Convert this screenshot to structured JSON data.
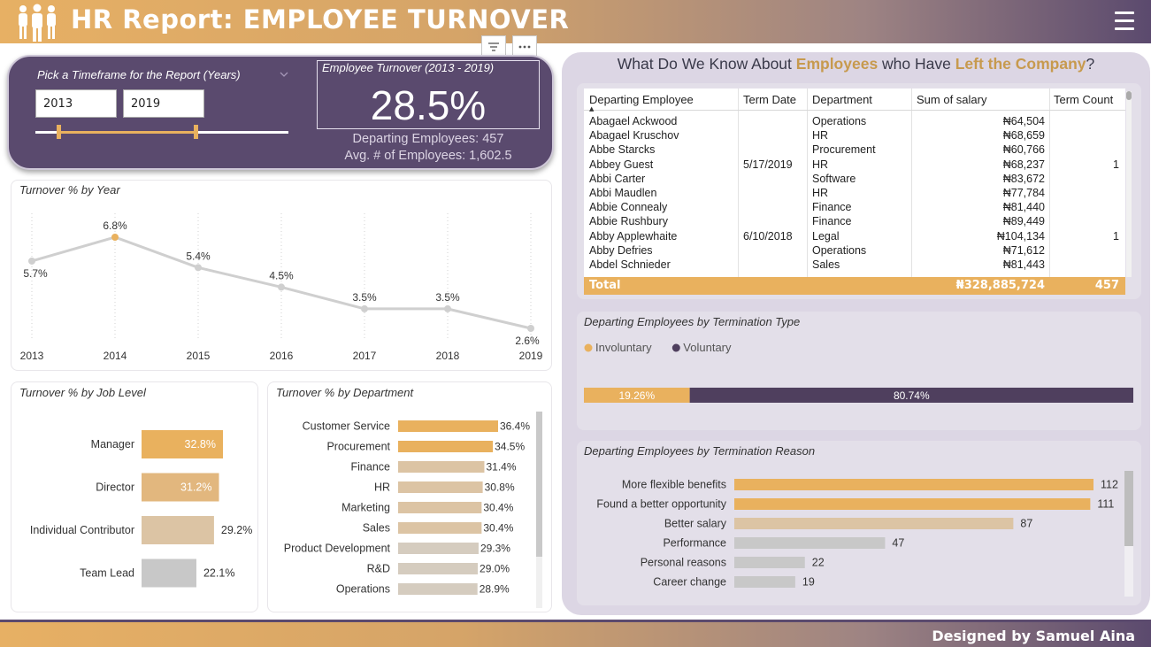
{
  "header": {
    "title": "HR Report: EMPLOYEE TURNOVER",
    "menu_icon": "hamburger-menu-icon",
    "filter_icon": "filter-icon",
    "more_icon": "more-options-icon"
  },
  "timeframe": {
    "label": "Pick a Timeframe for the Report (Years)",
    "start": "2013",
    "end": "2019",
    "range": [
      2013,
      2019
    ]
  },
  "kpi": {
    "title": "Employee Turnover (2013 - 2019)",
    "value": "28.5%",
    "departing": "Departing Employees: 457",
    "average": "Avg. # of Employees: 1,602.5"
  },
  "right": {
    "title_prefix": "What Do We Know About ",
    "title_hl1": "Employees",
    "title_mid": " who Have ",
    "title_hl2": "Left the Company",
    "title_suffix": "?"
  },
  "table": {
    "columns": [
      "Departing Employee",
      "Term Date",
      "Department",
      "Sum of salary",
      "Term Count"
    ],
    "rows": [
      [
        "Abagael Ackwood",
        "",
        "Operations",
        "₦64,504",
        ""
      ],
      [
        "Abagael Kruschov",
        "",
        "HR",
        "₦68,659",
        ""
      ],
      [
        "Abbe Starcks",
        "",
        "Procurement",
        "₦60,766",
        ""
      ],
      [
        "Abbey Guest",
        "5/17/2019",
        "HR",
        "₦68,237",
        "1"
      ],
      [
        "Abbi Carter",
        "",
        "Software",
        "₦83,672",
        ""
      ],
      [
        "Abbi Maudlen",
        "",
        "HR",
        "₦77,784",
        ""
      ],
      [
        "Abbie Connealy",
        "",
        "Finance",
        "₦81,440",
        ""
      ],
      [
        "Abbie Rushbury",
        "",
        "Finance",
        "₦89,449",
        ""
      ],
      [
        "Abby Applewhaite",
        "6/10/2018",
        "Legal",
        "₦104,134",
        "1"
      ],
      [
        "Abby Defries",
        "",
        "Operations",
        "₦71,612",
        ""
      ],
      [
        "Abdel Schnieder",
        "",
        "Sales",
        "₦81,443",
        ""
      ]
    ],
    "total_label": "Total",
    "total_salary": "₦328,885,724",
    "total_count": "457"
  },
  "footer": {
    "text": "Designed by Samuel Aina"
  },
  "colors": {
    "gold": "#e9b15e",
    "tan": "#dcc4a4",
    "grey": "#c8c8c8",
    "purple": "#5a4a6e"
  },
  "chart_data": [
    {
      "id": "year",
      "type": "line",
      "title": "Turnover % by Year",
      "x": [
        "2013",
        "2014",
        "2015",
        "2016",
        "2017",
        "2018",
        "2019"
      ],
      "values": [
        5.7,
        6.8,
        5.4,
        4.5,
        3.5,
        3.5,
        2.6
      ],
      "labels": [
        "5.7%",
        "6.8%",
        "5.4%",
        "4.5%",
        "3.5%",
        "3.5%",
        "2.6%"
      ],
      "highlight_index": 1,
      "ylim": [
        2.6,
        6.8
      ]
    },
    {
      "id": "job",
      "type": "bar",
      "orientation": "horizontal",
      "title": "Turnover % by Job Level",
      "categories": [
        "Manager",
        "Director",
        "Individual Contributor",
        "Team Lead"
      ],
      "values": [
        32.8,
        31.2,
        29.2,
        22.1
      ],
      "labels": [
        "32.8%",
        "31.2%",
        "29.2%",
        "22.1%"
      ],
      "colors": [
        "#e9b15e",
        "#e2b77e",
        "#dcc4a4",
        "#c8c8c8"
      ]
    },
    {
      "id": "dept",
      "type": "bar",
      "orientation": "horizontal",
      "title": "Turnover % by Department",
      "categories": [
        "Customer Service",
        "Procurement",
        "Finance",
        "HR",
        "Marketing",
        "Sales",
        "Product Development",
        "R&D",
        "Operations"
      ],
      "values": [
        36.4,
        34.5,
        31.4,
        30.8,
        30.4,
        30.4,
        29.3,
        29.0,
        28.9
      ],
      "labels": [
        "36.4%",
        "34.5%",
        "31.4%",
        "30.8%",
        "30.4%",
        "30.4%",
        "29.3%",
        "29.0%",
        "28.9%"
      ],
      "colors": [
        "#e9b15e",
        "#e9b15e",
        "#dcc4a4",
        "#dcc4a4",
        "#dcc4a4",
        "#dcc4a4",
        "#d5ccbf",
        "#d5ccbf",
        "#d5ccbf"
      ]
    },
    {
      "id": "termtype",
      "type": "bar",
      "orientation": "stacked-horizontal",
      "title": "Departing Employees by Termination Type",
      "series": [
        {
          "name": "Involuntary",
          "value": 19.26,
          "label": "19.26%",
          "color": "#e9b15e"
        },
        {
          "name": "Voluntary",
          "value": 80.74,
          "label": "80.74%",
          "color": "#4f3f5e"
        }
      ]
    },
    {
      "id": "reason",
      "type": "bar",
      "orientation": "horizontal",
      "title": "Departing Employees by Termination Reason",
      "categories": [
        "More flexible benefits",
        "Found a better opportunity",
        "Better salary",
        "Performance",
        "Personal reasons",
        "Career change"
      ],
      "values": [
        112,
        111,
        87,
        47,
        22,
        19
      ],
      "labels": [
        "112",
        "111",
        "87",
        "47",
        "22",
        "19"
      ],
      "colors": [
        "#e9b15e",
        "#e9b15e",
        "#dcc4a4",
        "#c8c8c8",
        "#c8c8c8",
        "#c8c8c8"
      ]
    }
  ]
}
